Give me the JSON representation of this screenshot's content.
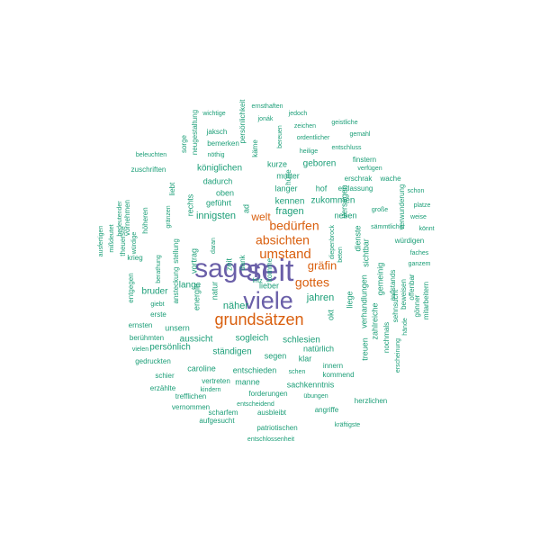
{
  "colors": {
    "large": "#6a5fa8",
    "medium": "#d95f0e",
    "small": "#1b9e77"
  },
  "words": [
    {
      "text": "seit",
      "tier": "large"
    },
    {
      "text": "sagen",
      "tier": "large"
    },
    {
      "text": "viele",
      "tier": "large"
    },
    {
      "text": "grundsätzen",
      "tier": "medium"
    },
    {
      "text": "umstand",
      "tier": "medium"
    },
    {
      "text": "bedürfen",
      "tier": "medium"
    },
    {
      "text": "absichten",
      "tier": "medium"
    },
    {
      "text": "gräfin",
      "tier": "medium"
    },
    {
      "text": "gottes",
      "tier": "medium"
    },
    {
      "text": "welt",
      "tier": "medium"
    },
    {
      "text": "innigsten",
      "tier": "small"
    },
    {
      "text": "fragen",
      "tier": "small"
    },
    {
      "text": "jahren",
      "tier": "small"
    },
    {
      "text": "näher",
      "tier": "small"
    },
    {
      "text": "königlichen",
      "tier": "small"
    },
    {
      "text": "kennen",
      "tier": "small"
    },
    {
      "text": "zukommen",
      "tier": "small"
    },
    {
      "text": "geboren",
      "tier": "small"
    },
    {
      "text": "kurze",
      "tier": "small"
    },
    {
      "text": "mutter",
      "tier": "small"
    },
    {
      "text": "langer",
      "tier": "small"
    },
    {
      "text": "dadurch",
      "tier": "small"
    },
    {
      "text": "oben",
      "tier": "small"
    },
    {
      "text": "geführt",
      "tier": "small"
    },
    {
      "text": "lange",
      "tier": "small"
    },
    {
      "text": "bruder",
      "tier": "small"
    },
    {
      "text": "unsern",
      "tier": "small"
    },
    {
      "text": "aussicht",
      "tier": "small"
    },
    {
      "text": "persönlich",
      "tier": "small"
    },
    {
      "text": "sogleich",
      "tier": "small"
    },
    {
      "text": "schlesien",
      "tier": "small"
    },
    {
      "text": "ständigen",
      "tier": "small"
    },
    {
      "text": "natürlich",
      "tier": "small"
    },
    {
      "text": "segen",
      "tier": "small"
    },
    {
      "text": "klar",
      "tier": "small"
    },
    {
      "text": "caroline",
      "tier": "small"
    },
    {
      "text": "entschieden",
      "tier": "small"
    },
    {
      "text": "manne",
      "tier": "small"
    },
    {
      "text": "sachkenntnis",
      "tier": "small"
    },
    {
      "text": "neben",
      "tier": "small"
    },
    {
      "text": "lieber",
      "tier": "small"
    },
    {
      "text": "fritz",
      "tier": "small"
    },
    {
      "text": "entlassung",
      "tier": "small"
    },
    {
      "text": "erschrak",
      "tier": "small"
    },
    {
      "text": "wache",
      "tier": "small"
    },
    {
      "text": "schon",
      "tier": "small"
    },
    {
      "text": "große",
      "tier": "small"
    },
    {
      "text": "sämmtlicher",
      "tier": "small"
    },
    {
      "text": "weise",
      "tier": "small"
    },
    {
      "text": "könnt",
      "tier": "small"
    },
    {
      "text": "würdigen",
      "tier": "small"
    },
    {
      "text": "faches",
      "tier": "small"
    },
    {
      "text": "ganzem",
      "tier": "small"
    },
    {
      "text": "platze",
      "tier": "small"
    },
    {
      "text": "finstern",
      "tier": "small"
    },
    {
      "text": "verfügen",
      "tier": "small"
    },
    {
      "text": "heilige",
      "tier": "small"
    },
    {
      "text": "entschluss",
      "tier": "small"
    },
    {
      "text": "ordentlicher",
      "tier": "small"
    },
    {
      "text": "gemahl",
      "tier": "small"
    },
    {
      "text": "zeichen",
      "tier": "small"
    },
    {
      "text": "geistliche",
      "tier": "small"
    },
    {
      "text": "jedoch",
      "tier": "small"
    },
    {
      "text": "jonák",
      "tier": "small"
    },
    {
      "text": "ernsthaften",
      "tier": "small"
    },
    {
      "text": "wichtige",
      "tier": "small"
    },
    {
      "text": "jaksch",
      "tier": "small"
    },
    {
      "text": "bemerken",
      "tier": "small"
    },
    {
      "text": "nöthig",
      "tier": "small"
    },
    {
      "text": "beleuchten",
      "tier": "small"
    },
    {
      "text": "zuschriften",
      "tier": "small"
    },
    {
      "text": "berühmten",
      "tier": "small"
    },
    {
      "text": "vielen",
      "tier": "small"
    },
    {
      "text": "gedruckten",
      "tier": "small"
    },
    {
      "text": "schier",
      "tier": "small"
    },
    {
      "text": "erzählte",
      "tier": "small"
    },
    {
      "text": "trefflichen",
      "tier": "small"
    },
    {
      "text": "vernommen",
      "tier": "small"
    },
    {
      "text": "aufgesucht",
      "tier": "small"
    },
    {
      "text": "entschlossenheit",
      "tier": "small"
    },
    {
      "text": "patriotischen",
      "tier": "small"
    },
    {
      "text": "kräftigste",
      "tier": "small"
    },
    {
      "text": "scharfem",
      "tier": "small"
    },
    {
      "text": "ausbleibt",
      "tier": "small"
    },
    {
      "text": "entscheidend",
      "tier": "small"
    },
    {
      "text": "angriffe",
      "tier": "small"
    },
    {
      "text": "forderungen",
      "tier": "small"
    },
    {
      "text": "übungen",
      "tier": "small"
    },
    {
      "text": "vertreten",
      "tier": "small"
    },
    {
      "text": "kindern",
      "tier": "small"
    },
    {
      "text": "kommend",
      "tier": "small"
    },
    {
      "text": "innern",
      "tier": "small"
    },
    {
      "text": "schen",
      "tier": "small"
    },
    {
      "text": "herzlichen",
      "tier": "small"
    },
    {
      "text": "ernsten",
      "tier": "small"
    },
    {
      "text": "erste",
      "tier": "small"
    },
    {
      "text": "giebt",
      "tier": "small"
    },
    {
      "text": "ausfertigen",
      "tier": "small",
      "rotate": -90
    },
    {
      "text": "mißdeutet",
      "tier": "small",
      "rotate": -90
    },
    {
      "text": "theuerste",
      "tier": "small",
      "rotate": -90
    },
    {
      "text": "vornehmen",
      "tier": "small",
      "rotate": -90
    },
    {
      "text": "krieg",
      "tier": "small"
    },
    {
      "text": "würdige",
      "tier": "small",
      "rotate": -90
    },
    {
      "text": "bedeutender",
      "tier": "small",
      "rotate": -90
    },
    {
      "text": "höheren",
      "tier": "small",
      "rotate": -90
    },
    {
      "text": "entgegen",
      "tier": "small",
      "rotate": -90
    },
    {
      "text": "berathung",
      "tier": "small",
      "rotate": -90
    },
    {
      "text": "gränzen",
      "tier": "small",
      "rotate": -90
    },
    {
      "text": "liebt",
      "tier": "small",
      "rotate": -90
    },
    {
      "text": "stellung",
      "tier": "small",
      "rotate": -90
    },
    {
      "text": "ansteckung",
      "tier": "small",
      "rotate": -90
    },
    {
      "text": "sorge",
      "tier": "small",
      "rotate": -90
    },
    {
      "text": "neugestaltung",
      "tier": "small",
      "rotate": -90
    },
    {
      "text": "rechts",
      "tier": "small",
      "rotate": -90
    },
    {
      "text": "vortrag",
      "tier": "small",
      "rotate": -90
    },
    {
      "text": "energie",
      "tier": "small",
      "rotate": -90
    },
    {
      "text": "natur",
      "tier": "small",
      "rotate": -90
    },
    {
      "text": "zeit",
      "tier": "small",
      "rotate": -90
    },
    {
      "text": "dank",
      "tier": "small",
      "rotate": -90
    },
    {
      "text": "daran",
      "tier": "small",
      "rotate": -90
    },
    {
      "text": "ad",
      "tier": "small",
      "rotate": -90
    },
    {
      "text": "käme",
      "tier": "small",
      "rotate": -90
    },
    {
      "text": "persönlichkeit",
      "tier": "small",
      "rotate": -90
    },
    {
      "text": "bereuen",
      "tier": "small",
      "rotate": -90
    },
    {
      "text": "hülfe",
      "tier": "small",
      "rotate": -90
    },
    {
      "text": "hof",
      "tier": "small"
    },
    {
      "text": "versagen",
      "tier": "small",
      "rotate": -90
    },
    {
      "text": "dienste",
      "tier": "small",
      "rotate": -90
    },
    {
      "text": "sichtbar",
      "tier": "small",
      "rotate": -90
    },
    {
      "text": "gemeinig",
      "tier": "small",
      "rotate": -90
    },
    {
      "text": "diepenbrock",
      "tier": "small",
      "rotate": -90
    },
    {
      "text": "beten",
      "tier": "small",
      "rotate": -90
    },
    {
      "text": "okt",
      "tier": "small",
      "rotate": -90
    },
    {
      "text": "liege",
      "tier": "small",
      "rotate": -90
    },
    {
      "text": "verhandlungen",
      "tier": "small",
      "rotate": -90
    },
    {
      "text": "treuen",
      "tier": "small",
      "rotate": -90
    },
    {
      "text": "zahlreiche",
      "tier": "small",
      "rotate": -90
    },
    {
      "text": "nochmals",
      "tier": "small",
      "rotate": -90
    },
    {
      "text": "erscheinung",
      "tier": "small",
      "rotate": -90
    },
    {
      "text": "aufstands",
      "tier": "small",
      "rotate": -90
    },
    {
      "text": "beweisen",
      "tier": "small",
      "rotate": -90
    },
    {
      "text": "sehnsucht",
      "tier": "small",
      "rotate": -90
    },
    {
      "text": "hände",
      "tier": "small",
      "rotate": -90
    },
    {
      "text": "offenbar",
      "tier": "small",
      "rotate": -90
    },
    {
      "text": "gönner",
      "tier": "small",
      "rotate": -90
    },
    {
      "text": "mitarbeitern",
      "tier": "small",
      "rotate": -90
    },
    {
      "text": "verwunderung",
      "tier": "small",
      "rotate": -90
    },
    {
      "text": "komme",
      "tier": "small",
      "rotate": -90
    }
  ]
}
